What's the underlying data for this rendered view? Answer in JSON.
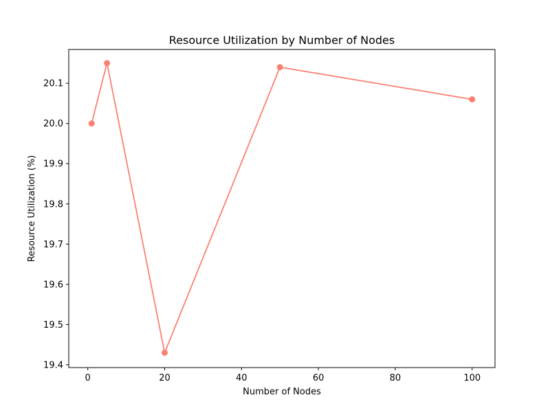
{
  "chart_data": {
    "type": "line",
    "title": "Resource Utilization by Number of Nodes",
    "xlabel": "Number of Nodes",
    "ylabel": "Resource Utilization (%)",
    "xlim": [
      -4.95,
      105.95
    ],
    "ylim": [
      19.393,
      20.184
    ],
    "x_ticks": [
      0,
      20,
      40,
      60,
      80,
      100
    ],
    "x_tick_labels": [
      "0",
      "20",
      "40",
      "60",
      "80",
      "100"
    ],
    "y_ticks": [
      19.4,
      19.5,
      19.6,
      19.7,
      19.8,
      19.9,
      20.0,
      20.1
    ],
    "y_tick_labels": [
      "19.4",
      "19.5",
      "19.6",
      "19.7",
      "19.8",
      "19.9",
      "20.0",
      "20.1"
    ],
    "grid": false,
    "legend": "none",
    "series": [
      {
        "color": "#fa8072",
        "marker": "circle",
        "x": [
          1,
          5,
          20,
          50,
          100
        ],
        "y": [
          20.0,
          20.15,
          19.43,
          20.14,
          20.06
        ]
      }
    ]
  }
}
